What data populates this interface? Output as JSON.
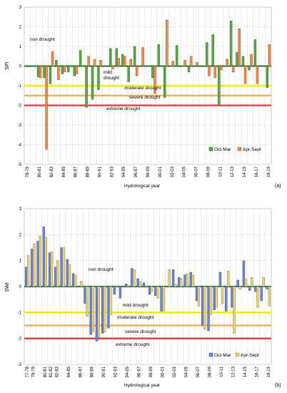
{
  "chart_data": [
    {
      "type": "bar",
      "panel_label": "(a)",
      "ylabel": "SPI",
      "xlabel": "Hydrological year",
      "ylim": [
        -5,
        3
      ],
      "y_ticks": [
        -5,
        -4,
        -3,
        -2,
        -1,
        0,
        1,
        2,
        3
      ],
      "grid": true,
      "legend_position": "bottom-right",
      "tick_labels": [
        "78-79",
        "80-81",
        "82-83",
        "84-85",
        "86-87",
        "88-89",
        "90-91",
        "92-93",
        "94-95",
        "96-97",
        "98-99",
        "00-01",
        "02-03",
        "04-05",
        "06-07",
        "08-09",
        "10-11",
        "12-13",
        "14-15",
        "16-17",
        "18-19"
      ],
      "categories": [
        "78-79",
        "79-80",
        "80-81",
        "81-82",
        "82-83",
        "83-84",
        "84-85",
        "85-86",
        "86-87",
        "87-88",
        "88-89",
        "89-90",
        "90-91",
        "91-92",
        "92-93",
        "93-94",
        "94-95",
        "95-96",
        "96-97",
        "97-98",
        "98-99",
        "99-00",
        "00-01",
        "01-02",
        "02-03",
        "03-04",
        "04-05",
        "05-06",
        "06-07",
        "07-08",
        "08-09",
        "09-10",
        "10-11",
        "11-12",
        "12-13",
        "13-14",
        "14-15",
        "15-16",
        "16-17",
        "17-18",
        "18-19"
      ],
      "series": [
        {
          "name": "Oct-Mar",
          "color": "#5fa84a",
          "values": [
            0.0,
            0.0,
            -0.55,
            -0.6,
            -0.9,
            0.3,
            -0.4,
            -0.3,
            -0.5,
            0.8,
            -2.1,
            -1.7,
            -1.2,
            0.0,
            0.9,
            0.9,
            0.6,
            -0.8,
            1.0,
            0.0,
            0.0,
            -0.6,
            1.1,
            -1.6,
            0.0,
            1.05,
            0.0,
            -0.3,
            0.0,
            0.0,
            1.2,
            1.6,
            -2.0,
            0.0,
            2.3,
            0.7,
            0.5,
            -0.2,
            1.35,
            0.0,
            -1.1
          ]
        },
        {
          "name": "Apr-Sept",
          "color": "#f28a4e",
          "values": [
            0.0,
            0.0,
            -0.6,
            -4.25,
            0.75,
            -0.7,
            -0.3,
            0.0,
            -0.4,
            0.0,
            0.5,
            0.35,
            0.3,
            0.0,
            -0.15,
            0.4,
            0.5,
            0.35,
            -0.5,
            0.95,
            0.0,
            -1.4,
            0.0,
            2.35,
            0.25,
            0.0,
            0.3,
            0.5,
            0.2,
            0.0,
            -0.5,
            -0.6,
            -0.2,
            0.35,
            -0.3,
            1.9,
            -0.9,
            0.6,
            -0.9,
            0.0,
            1.1
          ]
        }
      ],
      "thresholds": [
        {
          "label": "moderate drought",
          "value": -1.0,
          "color": "#f2f200"
        },
        {
          "label": "severe drought",
          "value": -1.5,
          "color": "#f5b35c"
        },
        {
          "label": "extreme drought",
          "value": -2.0,
          "color": "#ef4848"
        }
      ],
      "zero_line_color": "#2e8b3a",
      "annotations": [
        "non drought",
        "mild drought"
      ]
    },
    {
      "type": "bar",
      "panel_label": "(b)",
      "ylabel": "SWI",
      "xlabel": "Hydrological year",
      "ylim": [
        -3,
        3
      ],
      "y_ticks": [
        -3,
        -2,
        -1,
        0,
        1,
        2,
        3
      ],
      "grid": true,
      "legend_position": "bottom-right",
      "tick_labels": [
        "77-78",
        "78-79",
        "80-81",
        "81-82",
        "82-83",
        "84-85",
        "86-87",
        "88-89",
        "90-91",
        "92-93",
        "94-95",
        "96-97",
        "98-99",
        "00-01",
        "02-03",
        "04-05",
        "06-07",
        "08-09",
        "10-11",
        "12-13",
        "14-15",
        "16-17",
        "18-19"
      ],
      "categories": [
        "77-78",
        "78-79",
        "79-80",
        "80-81",
        "81-82",
        "82-83",
        "83-84",
        "84-85",
        "85-86",
        "86-87",
        "87-88",
        "88-89",
        "89-90",
        "90-91",
        "91-92",
        "92-93",
        "93-94",
        "94-95",
        "95-96",
        "96-97",
        "97-98",
        "98-99",
        "99-00",
        "00-01",
        "01-02",
        "02-03",
        "03-04",
        "04-05",
        "05-06",
        "06-07",
        "07-08",
        "08-09",
        "09-10",
        "10-11",
        "11-12",
        "12-13",
        "13-14",
        "14-15",
        "15-16",
        "16-17",
        "17-18",
        "18-19"
      ],
      "series": [
        {
          "name": "Oct-Mar",
          "color": "#6f86d6",
          "values": [
            0.75,
            1.45,
            1.75,
            2.3,
            1.3,
            0.75,
            1.5,
            1.05,
            0.5,
            0.0,
            -0.65,
            -1.85,
            -2.1,
            -1.8,
            -1.6,
            -0.3,
            -0.45,
            0.1,
            0.7,
            0.3,
            0.15,
            -0.3,
            -0.35,
            -0.95,
            0.0,
            0.65,
            0.35,
            0.45,
            0.55,
            -0.55,
            -1.5,
            -1.7,
            -0.9,
            0.55,
            -0.95,
            -0.8,
            0.25,
            1.0,
            -0.15,
            -0.2,
            -0.55,
            -0.1
          ]
        },
        {
          "name": "Apr-Sept",
          "color": "#e8d27a",
          "values": [
            1.2,
            1.65,
            1.95,
            1.9,
            1.35,
            1.0,
            1.5,
            0.85,
            0.45,
            0.2,
            -1.15,
            -1.75,
            -1.95,
            -1.75,
            -1.1,
            -0.05,
            0.0,
            0.05,
            0.65,
            0.2,
            -0.05,
            -0.2,
            -0.45,
            -0.95,
            0.65,
            0.1,
            0.3,
            0.5,
            0.45,
            -0.75,
            -1.65,
            -1.1,
            -0.8,
            -0.65,
            0.6,
            -1.8,
            -0.1,
            0.3,
            0.35,
            -0.8,
            0.35,
            -0.75
          ]
        }
      ],
      "thresholds": [
        {
          "label": "moderate drought",
          "value": -1.0,
          "color": "#f2f200"
        },
        {
          "label": "severe drought",
          "value": -1.5,
          "color": "#f5b35c"
        },
        {
          "label": "extreme drought",
          "value": -2.0,
          "color": "#ef4848"
        }
      ],
      "zero_line_color": "#2e8b3a",
      "annotations": [
        "non drought",
        "mild drought"
      ]
    }
  ]
}
